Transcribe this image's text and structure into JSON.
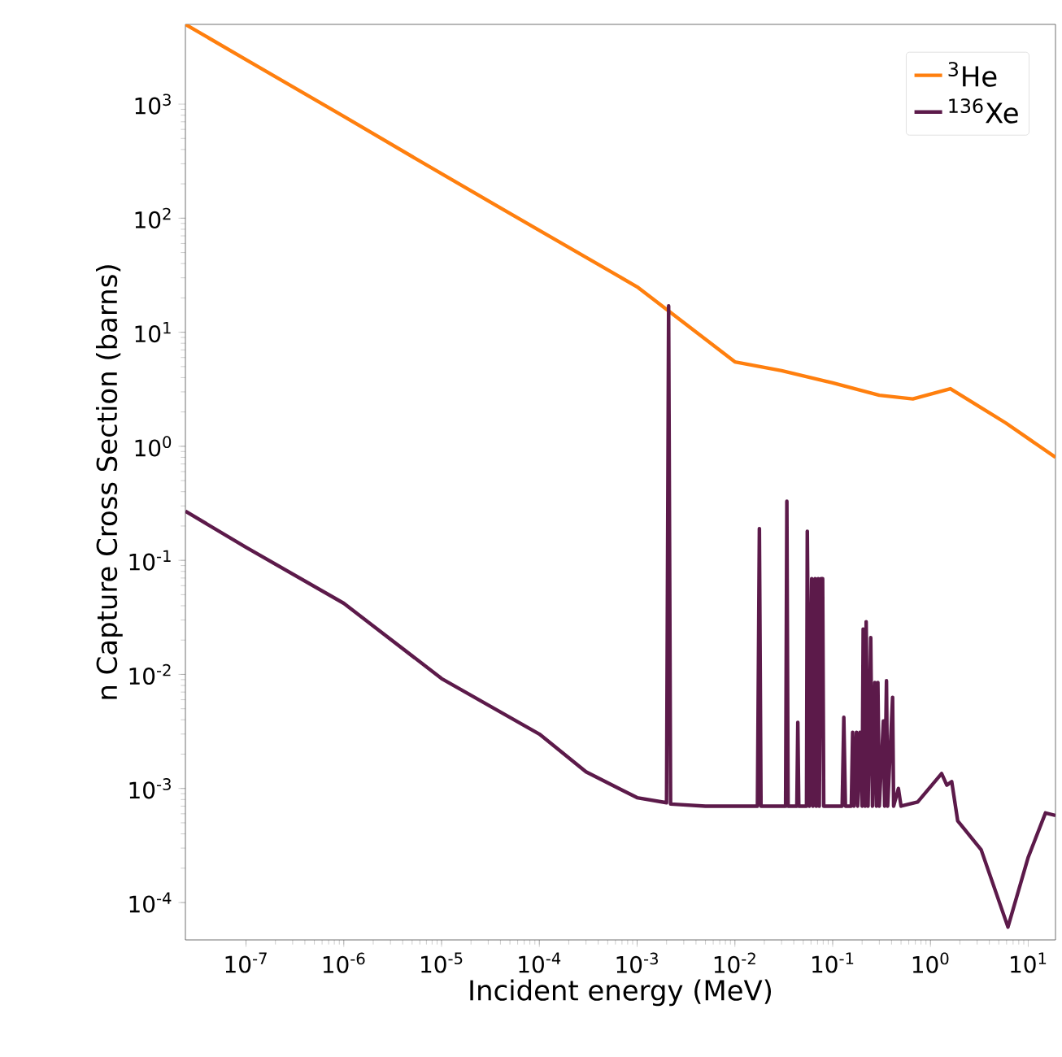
{
  "chart_data": {
    "type": "line",
    "xlabel": "Incident energy (MeV)",
    "ylabel": "n Capture Cross Section (barns)",
    "log": "xy",
    "legend": "top right",
    "xlim": [
      2.4e-08,
      19
    ],
    "ylim": [
      4.7e-05,
      5000
    ],
    "xticks": [
      {
        "value": 1e-07,
        "label": "10$^{-7}$"
      },
      {
        "value": 1e-06,
        "label": "10$^{-6}$"
      },
      {
        "value": 1e-05,
        "label": "10$^{-5}$"
      },
      {
        "value": 0.0001,
        "label": "10$^{-4}$"
      },
      {
        "value": 0.001,
        "label": "10$^{-3}$"
      },
      {
        "value": 0.01,
        "label": "10$^{-2}$"
      },
      {
        "value": 0.1,
        "label": "10$^{-1}$"
      },
      {
        "value": 1,
        "label": "10$^{0}$"
      },
      {
        "value": 10,
        "label": "10$^{1}$"
      }
    ],
    "yticks": [
      {
        "value": 0.0001,
        "label": "10$^{-4}$"
      },
      {
        "value": 0.001,
        "label": "10$^{-3}$"
      },
      {
        "value": 0.01,
        "label": "10$^{-2}$"
      },
      {
        "value": 0.1,
        "label": "10$^{-1}$"
      },
      {
        "value": 1,
        "label": "10$^{0}$"
      },
      {
        "value": 10,
        "label": "10$^{1}$"
      },
      {
        "value": 100,
        "label": "10$^{2}$"
      },
      {
        "value": 1000,
        "label": "10$^{3}$"
      }
    ],
    "series": [
      {
        "name": "$^{3}$He",
        "color": "#ff7f0e",
        "x": [
          2.4e-08,
          1e-07,
          1e-06,
          1e-05,
          0.0001,
          0.001,
          0.01,
          0.03,
          0.1,
          0.3,
          0.66,
          1.6,
          5.9,
          19
        ],
        "values": [
          5000,
          2450,
          780,
          245,
          78,
          25,
          5.5,
          4.6,
          3.6,
          2.8,
          2.6,
          3.2,
          1.6,
          0.8
        ]
      },
      {
        "name": "$^{136}$Xe",
        "color": "#5c1a4a",
        "x": [
          2.4e-08,
          1e-07,
          1e-06,
          1e-05,
          0.0001,
          0.0003,
          0.001,
          0.002,
          0.0021,
          0.0022,
          0.005,
          0.017,
          0.0178,
          0.0185,
          0.033,
          0.034,
          0.035,
          0.043,
          0.044,
          0.045,
          0.054,
          0.055,
          0.058,
          0.061,
          0.063,
          0.066,
          0.068,
          0.071,
          0.073,
          0.076,
          0.079,
          0.081,
          0.125,
          0.13,
          0.135,
          0.155,
          0.16,
          0.165,
          0.175,
          0.18,
          0.19,
          0.2,
          0.205,
          0.215,
          0.22,
          0.23,
          0.245,
          0.255,
          0.27,
          0.28,
          0.29,
          0.3,
          0.33,
          0.34,
          0.355,
          0.365,
          0.41,
          0.42,
          0.47,
          0.5,
          0.74,
          1.3,
          1.47,
          1.65,
          1.9,
          3.3,
          6.2,
          10,
          15,
          19
        ],
        "values": [
          0.27,
          0.13,
          0.042,
          0.0092,
          0.003,
          0.0014,
          0.00083,
          0.00075,
          17,
          0.00073,
          0.0007,
          0.0007,
          0.19,
          0.0007,
          0.0007,
          0.33,
          0.0007,
          0.0007,
          0.0038,
          0.0007,
          0.0007,
          0.18,
          0.0007,
          0.069,
          0.0007,
          0.069,
          0.0007,
          0.069,
          0.0007,
          0.069,
          0.069,
          0.0007,
          0.0007,
          0.0042,
          0.0007,
          0.0007,
          0.0031,
          0.0007,
          0.0031,
          0.0007,
          0.0031,
          0.0007,
          0.025,
          0.0007,
          0.029,
          0.0007,
          0.021,
          0.0007,
          0.0085,
          0.0007,
          0.0085,
          0.0007,
          0.0039,
          0.0007,
          0.0088,
          0.0007,
          0.0063,
          0.0007,
          0.001,
          0.0007,
          0.00076,
          0.00135,
          0.00107,
          0.00115,
          0.00052,
          0.00029,
          6.1e-05,
          0.00025,
          0.00061,
          0.00058
        ]
      }
    ]
  }
}
